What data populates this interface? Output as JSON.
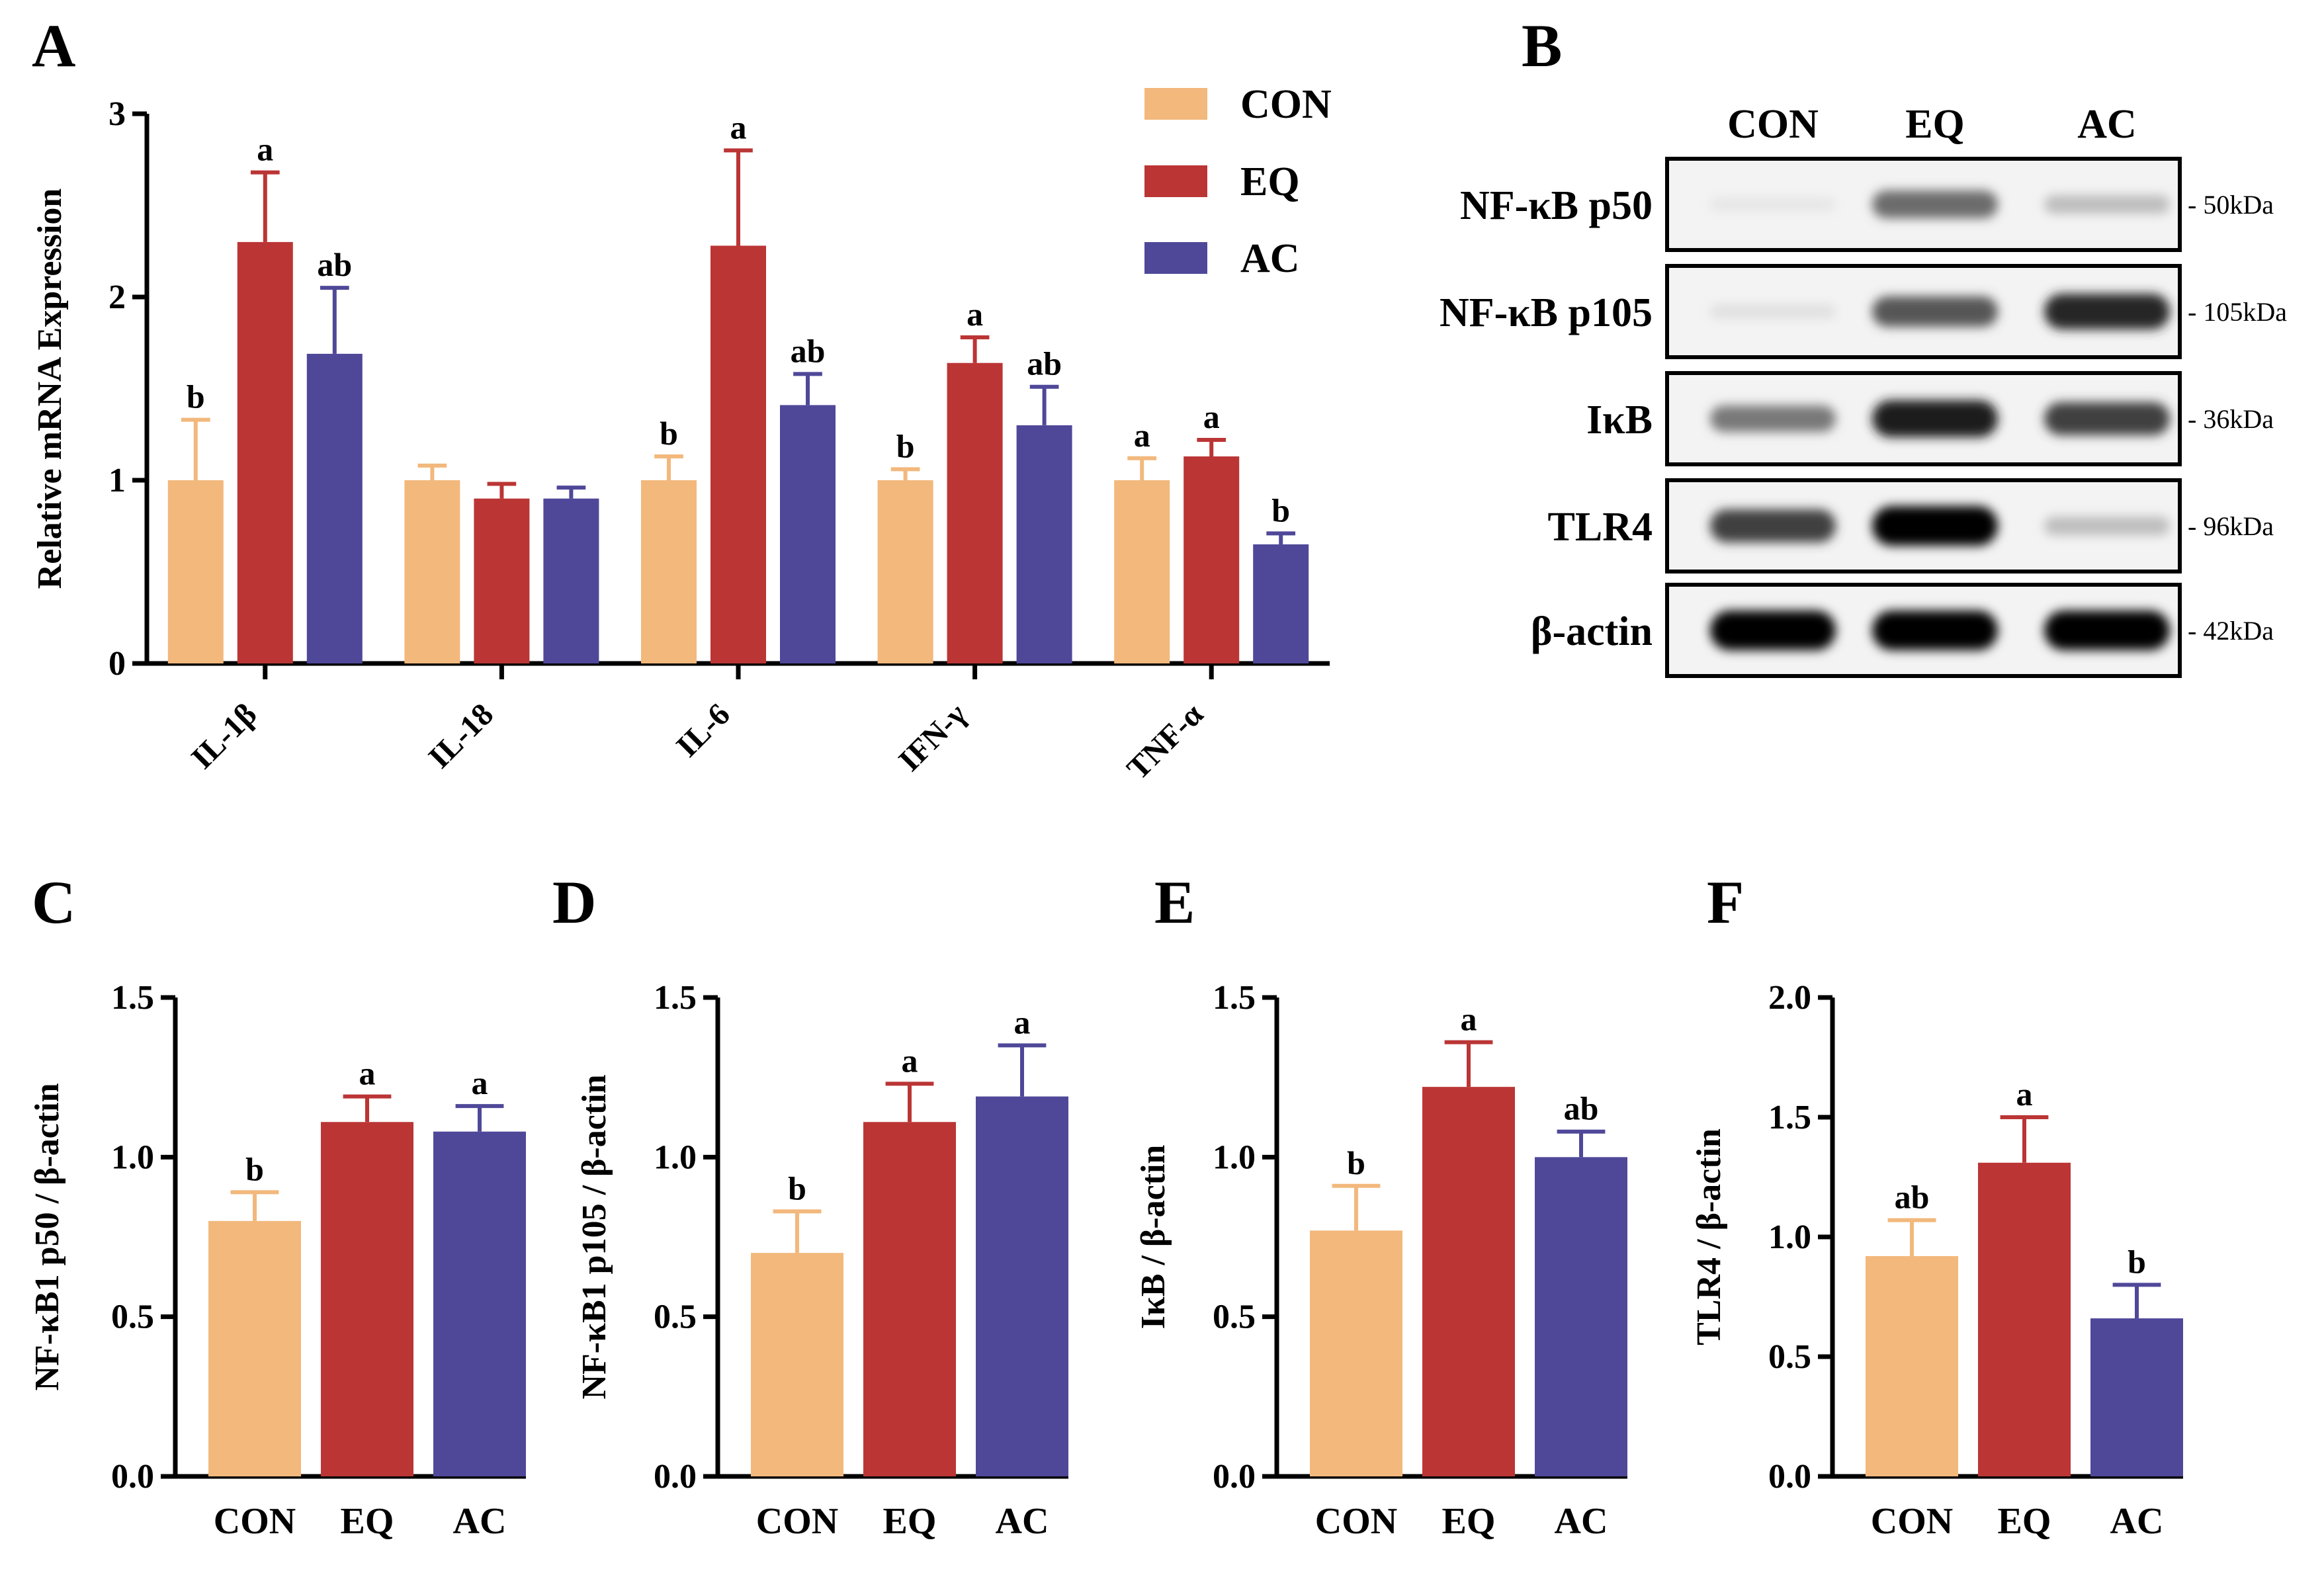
{
  "colors": {
    "CON": "#F2B87C",
    "EQ": "#BB3535",
    "AC": "#4F4899"
  },
  "legend": {
    "items": [
      "CON",
      "EQ",
      "AC"
    ]
  },
  "panels": {
    "A": "A",
    "B": "B",
    "C": "C",
    "D": "D",
    "E": "E",
    "F": "F"
  },
  "chart_data": [
    {
      "panel": "A",
      "type": "bar",
      "ylabel": "Relative mRNA Expression",
      "ylim": [
        0,
        3
      ],
      "yticks": [
        "0",
        "1",
        "2",
        "3"
      ],
      "categories": [
        "IL-1β",
        "IL-18",
        "IL-6",
        "IFN-γ",
        "TNF-α"
      ],
      "series": [
        {
          "name": "CON",
          "values": [
            1.0,
            1.0,
            1.0,
            1.0,
            1.0
          ],
          "errors": [
            0.33,
            0.08,
            0.13,
            0.06,
            0.12
          ],
          "sig": [
            "b",
            "",
            "b",
            "b",
            "a"
          ]
        },
        {
          "name": "EQ",
          "values": [
            2.3,
            0.9,
            2.28,
            1.64,
            1.13
          ],
          "errors": [
            0.38,
            0.08,
            0.52,
            0.14,
            0.09
          ],
          "sig": [
            "a",
            "",
            "a",
            "a",
            "a"
          ]
        },
        {
          "name": "AC",
          "values": [
            1.69,
            0.9,
            1.41,
            1.3,
            0.65
          ],
          "errors": [
            0.36,
            0.06,
            0.17,
            0.21,
            0.06
          ],
          "sig": [
            "ab",
            "",
            "ab",
            "ab",
            "b"
          ]
        }
      ]
    },
    {
      "panel": "C",
      "type": "bar",
      "ylabel": "NF-κB1 p50 / β-actin",
      "ylim": [
        0,
        1.5
      ],
      "yticks": [
        "0.0",
        "0.5",
        "1.0",
        "1.5"
      ],
      "categories": [
        "CON",
        "EQ",
        "AC"
      ],
      "values": [
        0.8,
        1.11,
        1.08
      ],
      "errors": [
        0.09,
        0.08,
        0.08
      ],
      "sig": [
        "b",
        "a",
        "a"
      ]
    },
    {
      "panel": "D",
      "type": "bar",
      "ylabel": "NF-κB1 p105 / β-actin",
      "ylim": [
        0,
        1.5
      ],
      "yticks": [
        "0.0",
        "0.5",
        "1.0",
        "1.5"
      ],
      "categories": [
        "CON",
        "EQ",
        "AC"
      ],
      "values": [
        0.7,
        1.11,
        1.19
      ],
      "errors": [
        0.13,
        0.12,
        0.16
      ],
      "sig": [
        "b",
        "a",
        "a"
      ]
    },
    {
      "panel": "E",
      "type": "bar",
      "ylabel": "IκB / β-actin",
      "ylim": [
        0,
        1.5
      ],
      "yticks": [
        "0.0",
        "0.5",
        "1.0",
        "1.5"
      ],
      "categories": [
        "CON",
        "EQ",
        "AC"
      ],
      "values": [
        0.77,
        1.22,
        1.0
      ],
      "errors": [
        0.14,
        0.14,
        0.08
      ],
      "sig": [
        "b",
        "a",
        "ab"
      ]
    },
    {
      "panel": "F",
      "type": "bar",
      "ylabel": "TLR4 / β-actin",
      "ylim": [
        0,
        2.0
      ],
      "yticks": [
        "0.0",
        "0.5",
        "1.0",
        "1.5",
        "2.0"
      ],
      "categories": [
        "CON",
        "EQ",
        "AC"
      ],
      "values": [
        0.92,
        1.31,
        0.66
      ],
      "errors": [
        0.15,
        0.19,
        0.14
      ],
      "sig": [
        "ab",
        "a",
        "b"
      ]
    }
  ],
  "western_blot": {
    "lanes": [
      "CON",
      "EQ",
      "AC"
    ],
    "rows": [
      {
        "protein": "NF-κB p50",
        "kda": "- 50kDa",
        "intensity": [
          0.02,
          0.55,
          0.2
        ]
      },
      {
        "protein": "NF-κB p105",
        "kda": "- 105kDa",
        "intensity": [
          0.05,
          0.65,
          0.85
        ]
      },
      {
        "protein": "IκB",
        "kda": "- 36kDa",
        "intensity": [
          0.5,
          0.9,
          0.75
        ]
      },
      {
        "protein": "TLR4",
        "kda": "- 96kDa",
        "intensity": [
          0.75,
          1.0,
          0.2
        ]
      },
      {
        "protein": "β-actin",
        "kda": "- 42kDa",
        "intensity": [
          1.0,
          1.0,
          1.0
        ]
      }
    ]
  }
}
